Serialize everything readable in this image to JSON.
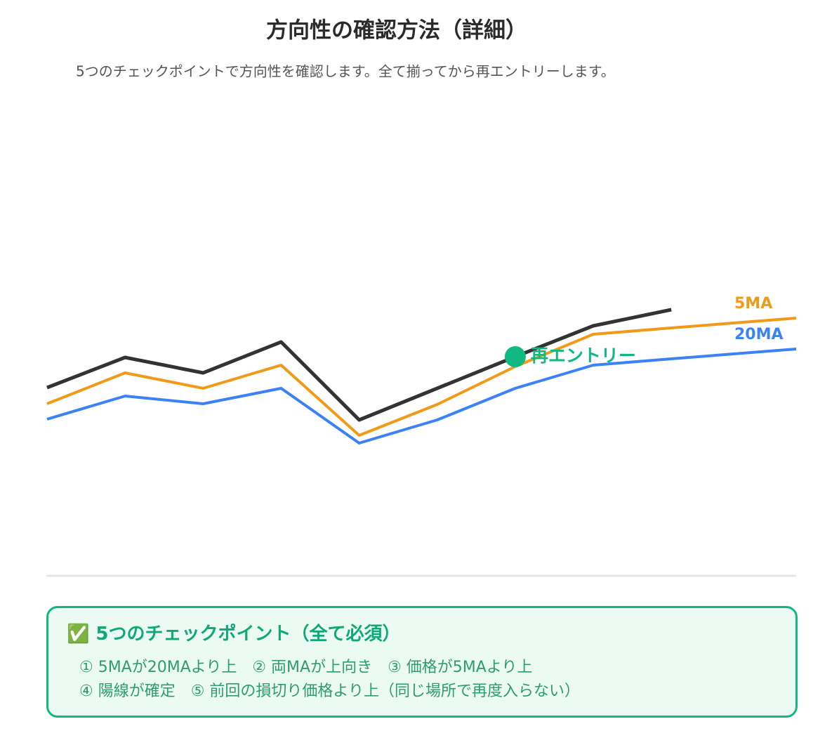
{
  "chart_data": {
    "type": "line",
    "title": "方向性の確認方法（詳細）",
    "subtitle": "5つのチェックポイントで方向性を確認します。全て揃ってから再エントリーします。",
    "x": [
      0,
      1,
      2,
      3,
      4,
      5,
      6,
      7,
      8,
      9.6
    ],
    "xlim": [
      0,
      9.6
    ],
    "ylim": [
      0,
      700
    ],
    "series": [
      {
        "color": "#333333",
        "values": [
          268,
          311,
          289,
          333,
          222,
          267,
          312,
          356,
          379,
          null
        ]
      },
      {
        "name": "5MA",
        "color": "#f09a18",
        "values": [
          245,
          289,
          267,
          300,
          200,
          244,
          298,
          344,
          353,
          367
        ]
      },
      {
        "name": "20MA",
        "color": "#3b82f6",
        "values": [
          223,
          256,
          245,
          267,
          189,
          222,
          267,
          300,
          309,
          323
        ]
      }
    ],
    "annotation": {
      "x": 6,
      "y": 312,
      "label": "再エントリー",
      "color": "#10b981"
    },
    "checklist": {
      "title": "✅ 5つのチェックポイント（全て必須）",
      "lines": [
        "① 5MAが20MAより上　② 両MAが上向き　③ 価格が5MAより上",
        "④ 陽線が確定　⑤ 前回の損切り価格より上（同じ場所で再度入らない）"
      ]
    }
  }
}
